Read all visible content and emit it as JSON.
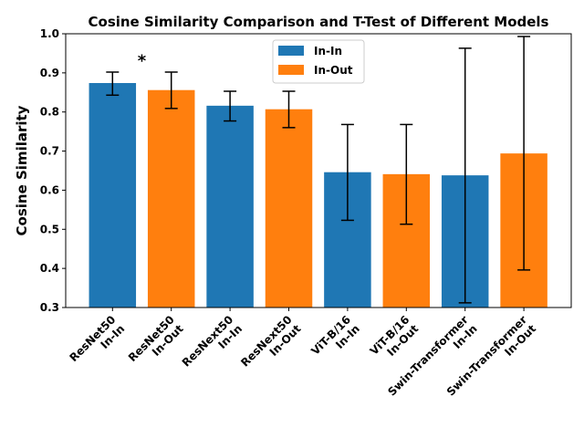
{
  "chart_data": {
    "type": "bar",
    "title": "Cosine Similarity Comparison and T-Test of Different Models",
    "ylabel": "Cosine Similarity",
    "xlabel": "",
    "ylim": [
      0.3,
      1.0
    ],
    "yticks": [
      "0.3",
      "0.4",
      "0.5",
      "0.6",
      "0.7",
      "0.8",
      "0.9",
      "1.0"
    ],
    "grid": false,
    "legend_position": "top-center",
    "legend": [
      {
        "name": "In-In",
        "color": "#1f77b4"
      },
      {
        "name": "In-Out",
        "color": "#ff7f0e"
      }
    ],
    "bars": [
      {
        "label_line1": "ResNet50",
        "label_line2": "In-In",
        "group": "In-In",
        "value": 0.874,
        "err_low": 0.843,
        "err_high": 0.902
      },
      {
        "label_line1": "ResNet50",
        "label_line2": "In-Out",
        "group": "In-Out",
        "value": 0.856,
        "err_low": 0.809,
        "err_high": 0.902
      },
      {
        "label_line1": "ResNext50",
        "label_line2": "In-In",
        "group": "In-In",
        "value": 0.816,
        "err_low": 0.777,
        "err_high": 0.853
      },
      {
        "label_line1": "ResNext50",
        "label_line2": "In-Out",
        "group": "In-Out",
        "value": 0.807,
        "err_low": 0.76,
        "err_high": 0.853
      },
      {
        "label_line1": "ViT-B/16",
        "label_line2": "In-In",
        "group": "In-In",
        "value": 0.646,
        "err_low": 0.523,
        "err_high": 0.768
      },
      {
        "label_line1": "ViT-B/16",
        "label_line2": "In-Out",
        "group": "In-Out",
        "value": 0.641,
        "err_low": 0.513,
        "err_high": 0.768
      },
      {
        "label_line1": "Swin-Transformer",
        "label_line2": "In-In",
        "group": "In-In",
        "value": 0.638,
        "err_low": 0.312,
        "err_high": 0.963
      },
      {
        "label_line1": "Swin-Transformer",
        "label_line2": "In-Out",
        "group": "In-Out",
        "value": 0.694,
        "err_low": 0.396,
        "err_high": 0.993
      }
    ],
    "annotations": [
      {
        "text": "*",
        "between_bars": [
          0,
          1
        ],
        "y": 0.945
      }
    ]
  }
}
